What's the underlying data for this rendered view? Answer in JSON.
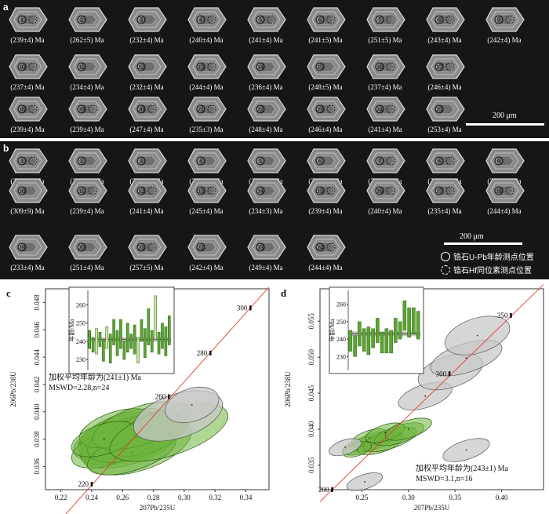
{
  "panel_a": {
    "label": "a",
    "scale_text": "200 μm",
    "grains": [
      {
        "spot": "1",
        "age": "(239±4) Ma",
        "hf": true
      },
      {
        "spot": "2",
        "age": "(262±5) Ma",
        "hf": false
      },
      {
        "spot": "3",
        "age": "(232±4) Ma",
        "hf": false
      },
      {
        "spot": "4",
        "age": "(240±4) Ma",
        "hf": true
      },
      {
        "spot": "5",
        "age": "(241±4) Ma",
        "hf": true
      },
      {
        "spot": "6",
        "age": "(241±5) Ma",
        "hf": true
      },
      {
        "spot": "7",
        "age": "(251±5) Ma",
        "hf": true
      },
      {
        "spot": "8",
        "age": "(243±4) Ma",
        "hf": true
      },
      {
        "spot": "9",
        "age": "(242±4) Ma",
        "hf": true
      },
      {
        "spot": "10",
        "age": "(237±4) Ma",
        "hf": true
      },
      {
        "spot": "11",
        "age": "(234±4) Ma",
        "hf": false
      },
      {
        "spot": "12",
        "age": "(232±4) Ma",
        "hf": false
      },
      {
        "spot": "13",
        "age": "(244±4) Ma",
        "hf": true
      },
      {
        "spot": "14",
        "age": "(236±4) Ma",
        "hf": false
      },
      {
        "spot": "15",
        "age": "(248±5) Ma",
        "hf": false
      },
      {
        "spot": "16",
        "age": "(237±4) Ma",
        "hf": true
      },
      {
        "spot": "17",
        "age": "(246±4) Ma",
        "hf": true
      },
      {
        "spot": "18",
        "age": "(239±4) Ma",
        "hf": true
      },
      {
        "spot": "19",
        "age": "(239±4) Ma",
        "hf": true
      },
      {
        "spot": "20",
        "age": "(247±4) Ma",
        "hf": true
      },
      {
        "spot": "21",
        "age": "(235±3) Ma",
        "hf": true
      },
      {
        "spot": "22",
        "age": "(248±4) Ma",
        "hf": false
      },
      {
        "spot": "23",
        "age": "(246±4) Ma",
        "hf": true
      },
      {
        "spot": "24",
        "age": "(241±4) Ma",
        "hf": true
      },
      {
        "spot": "25",
        "age": "(253±4) Ma",
        "hf": false
      }
    ]
  },
  "panel_b": {
    "label": "b",
    "scale_text": "200 μm",
    "legend": {
      "upb": "锆石U-Pb年龄测点位置",
      "hf": "锆石Hf同位素测点位置"
    },
    "grains": [
      {
        "spot": "1",
        "age": "(238±4) Ma",
        "hf": true
      },
      {
        "spot": "2",
        "age": "(206±3) Ma",
        "hf": false
      },
      {
        "spot": "3",
        "age": "(300±6) Ma",
        "hf": false
      },
      {
        "spot": "4",
        "age": "(232±3) Ma",
        "hf": false
      },
      {
        "spot": "5",
        "age": "(278±5) Ma",
        "hf": false
      },
      {
        "spot": "6",
        "age": "(239±3) Ma",
        "hf": false
      },
      {
        "spot": "7",
        "age": "(256±5) Ma",
        "hf": true
      },
      {
        "spot": "8",
        "age": "(251±5) Ma",
        "hf": true
      },
      {
        "spot": "9",
        "age": "(336±8) Ma",
        "hf": false
      },
      {
        "spot": "10",
        "age": "(309±9) Ma",
        "hf": false
      },
      {
        "spot": "11",
        "age": "(239±4) Ma",
        "hf": true
      },
      {
        "spot": "12",
        "age": "(241±4) Ma",
        "hf": true
      },
      {
        "spot": "13",
        "age": "(245±4) Ma",
        "hf": true
      },
      {
        "spot": "14",
        "age": "(234±3) Ma",
        "hf": false
      },
      {
        "spot": "15",
        "age": "(239±4) Ma",
        "hf": true
      },
      {
        "spot": "16",
        "age": "(240±4) Ma",
        "hf": true
      },
      {
        "spot": "17",
        "age": "(235±4) Ma",
        "hf": true
      },
      {
        "spot": "18",
        "age": "(244±4) Ma",
        "hf": true
      },
      {
        "spot": "19",
        "age": "(233±4) Ma",
        "hf": false
      },
      {
        "spot": "20",
        "age": "(251±4) Ma",
        "hf": false
      },
      {
        "spot": "21",
        "age": "(257±5) Ma",
        "hf": true
      },
      {
        "spot": "22",
        "age": "(242±4) Ma",
        "hf": false
      },
      {
        "spot": "23",
        "age": "(249±4) Ma",
        "hf": false
      },
      {
        "spot": "24",
        "age": "(244±4) Ma",
        "hf": true
      }
    ]
  },
  "chart_data": [
    {
      "type": "scatter",
      "label": "c",
      "xlabel": "207Pb/235U",
      "ylabel": "206Pb/238U",
      "xlim": [
        0.21,
        0.355
      ],
      "ylim": [
        0.0343,
        0.049
      ],
      "xticks": [
        "0.22",
        "0.24",
        "0.26",
        "0.28",
        "0.30",
        "0.32",
        "0.34"
      ],
      "yticks": [
        "0.036",
        "0.038",
        "0.040",
        "0.042",
        "0.044",
        "0.046",
        "0.048"
      ],
      "concordia_marks": [
        {
          "age": "220",
          "x": 0.24,
          "y": 0.0347
        },
        {
          "age": "260",
          "x": 0.29,
          "y": 0.0411
        },
        {
          "age": "280",
          "x": 0.317,
          "y": 0.0443
        },
        {
          "age": "300",
          "x": 0.343,
          "y": 0.0476
        }
      ],
      "annotation": [
        "加权平均年龄为(241±1) Ma",
        "MSWD=2.28,n=24"
      ],
      "inset": {
        "ylabel": "年龄/Ma",
        "yticks": [
          "230",
          "240",
          "250",
          "260"
        ],
        "ylim": [
          224,
          268
        ],
        "mean": 241,
        "bars": [
          [
            236,
            246
          ],
          [
            234,
            242
          ],
          [
            233,
            247
          ],
          [
            237,
            245
          ],
          [
            229,
            241
          ],
          [
            236,
            248
          ],
          [
            228,
            244
          ],
          [
            238,
            252
          ],
          [
            232,
            246
          ],
          [
            236,
            252
          ],
          [
            230,
            240
          ],
          [
            234,
            250
          ],
          [
            236,
            244
          ],
          [
            233,
            249
          ],
          [
            228,
            242
          ],
          [
            240,
            252
          ],
          [
            231,
            247
          ],
          [
            238,
            258
          ],
          [
            234,
            246
          ],
          [
            241,
            265
          ],
          [
            233,
            245
          ],
          [
            236,
            250
          ],
          [
            232,
            248
          ],
          [
            238,
            254
          ]
        ],
        "grey_bars": [
          2,
          5,
          14,
          19
        ]
      },
      "ellipses": [
        {
          "cx": 0.255,
          "cy": 0.038,
          "rx": 0.028,
          "ry": 0.0013,
          "grey": false
        },
        {
          "cx": 0.265,
          "cy": 0.0378,
          "rx": 0.034,
          "ry": 0.0016,
          "grey": false
        },
        {
          "cx": 0.26,
          "cy": 0.0383,
          "rx": 0.03,
          "ry": 0.0014,
          "grey": false
        },
        {
          "cx": 0.27,
          "cy": 0.0375,
          "rx": 0.036,
          "ry": 0.0018,
          "grey": false
        },
        {
          "cx": 0.258,
          "cy": 0.0376,
          "rx": 0.026,
          "ry": 0.0012,
          "grey": false
        },
        {
          "cx": 0.262,
          "cy": 0.0386,
          "rx": 0.031,
          "ry": 0.0013,
          "grey": false
        },
        {
          "cx": 0.25,
          "cy": 0.0373,
          "rx": 0.024,
          "ry": 0.0012,
          "grey": false
        },
        {
          "cx": 0.268,
          "cy": 0.0381,
          "rx": 0.032,
          "ry": 0.0015,
          "grey": false
        },
        {
          "cx": 0.275,
          "cy": 0.0384,
          "rx": 0.028,
          "ry": 0.0014,
          "grey": false
        },
        {
          "cx": 0.266,
          "cy": 0.037,
          "rx": 0.03,
          "ry": 0.0013,
          "grey": false
        },
        {
          "cx": 0.256,
          "cy": 0.0388,
          "rx": 0.025,
          "ry": 0.0012,
          "grey": false
        },
        {
          "cx": 0.272,
          "cy": 0.039,
          "rx": 0.033,
          "ry": 0.0014,
          "grey": false
        },
        {
          "cx": 0.248,
          "cy": 0.038,
          "rx": 0.022,
          "ry": 0.0011,
          "grey": false
        },
        {
          "cx": 0.29,
          "cy": 0.0385,
          "rx": 0.04,
          "ry": 0.0017,
          "grey": false
        },
        {
          "cx": 0.296,
          "cy": 0.0397,
          "rx": 0.03,
          "ry": 0.0016,
          "grey": true
        },
        {
          "cx": 0.305,
          "cy": 0.0405,
          "rx": 0.018,
          "ry": 0.0012,
          "grey": true
        }
      ]
    },
    {
      "type": "scatter",
      "label": "d",
      "xlabel": "207Pb/235U",
      "ylabel": "206Pb/238U",
      "xlim": [
        0.205,
        0.445
      ],
      "ylim": [
        0.0316,
        0.0595
      ],
      "xticks": [
        "0.25",
        "0.30",
        "0.35",
        "0.40"
      ],
      "yticks": [
        "0.035",
        "0.040",
        "0.045",
        "0.050",
        "0.055"
      ],
      "concordia_marks": [
        {
          "age": "200",
          "x": 0.218,
          "y": 0.0316
        },
        {
          "age": "300",
          "x": 0.344,
          "y": 0.0477
        },
        {
          "age": "350",
          "x": 0.41,
          "y": 0.0558
        }
      ],
      "annotation": [
        "加权平均年龄为(243±1) Ma",
        "MSWD=3.1,n=16"
      ],
      "inset": {
        "ylabel": "年龄/Ma",
        "yticks": [
          "230",
          "240",
          "250",
          "260"
        ],
        "ylim": [
          222,
          268
        ],
        "mean": 243,
        "bars": [
          [
            233,
            245
          ],
          [
            230,
            242
          ],
          [
            236,
            250
          ],
          [
            233,
            246
          ],
          [
            231,
            247
          ],
          [
            235,
            246
          ],
          [
            238,
            252
          ],
          [
            232,
            244
          ],
          [
            232,
            246
          ],
          [
            232,
            245
          ],
          [
            238,
            252
          ],
          [
            240,
            250
          ],
          [
            245,
            262
          ],
          [
            241,
            258
          ],
          [
            243,
            258
          ],
          [
            240,
            256
          ]
        ],
        "grey_bars": []
      },
      "ellipses": [
        {
          "cx": 0.25,
          "cy": 0.0377,
          "rx": 0.022,
          "ry": 0.001,
          "grey": false
        },
        {
          "cx": 0.262,
          "cy": 0.0383,
          "rx": 0.024,
          "ry": 0.0011,
          "grey": false
        },
        {
          "cx": 0.27,
          "cy": 0.038,
          "rx": 0.026,
          "ry": 0.0012,
          "grey": false
        },
        {
          "cx": 0.258,
          "cy": 0.0388,
          "rx": 0.02,
          "ry": 0.001,
          "grey": false
        },
        {
          "cx": 0.28,
          "cy": 0.0386,
          "rx": 0.03,
          "ry": 0.0013,
          "grey": false
        },
        {
          "cx": 0.29,
          "cy": 0.0393,
          "rx": 0.028,
          "ry": 0.0012,
          "grey": false
        },
        {
          "cx": 0.275,
          "cy": 0.0395,
          "rx": 0.022,
          "ry": 0.0011,
          "grey": false
        },
        {
          "cx": 0.3,
          "cy": 0.04,
          "rx": 0.026,
          "ry": 0.0012,
          "grey": false
        },
        {
          "cx": 0.245,
          "cy": 0.0372,
          "rx": 0.016,
          "ry": 0.0009,
          "grey": false
        },
        {
          "cx": 0.232,
          "cy": 0.0375,
          "rx": 0.018,
          "ry": 0.001,
          "grey": true
        },
        {
          "cx": 0.253,
          "cy": 0.0327,
          "rx": 0.02,
          "ry": 0.001,
          "grey": true
        },
        {
          "cx": 0.362,
          "cy": 0.0371,
          "rx": 0.026,
          "ry": 0.0013,
          "grey": true
        },
        {
          "cx": 0.318,
          "cy": 0.0446,
          "rx": 0.03,
          "ry": 0.0016,
          "grey": true
        },
        {
          "cx": 0.345,
          "cy": 0.048,
          "rx": 0.036,
          "ry": 0.0022,
          "grey": true
        },
        {
          "cx": 0.362,
          "cy": 0.0499,
          "rx": 0.04,
          "ry": 0.002,
          "grey": true
        },
        {
          "cx": 0.374,
          "cy": 0.053,
          "rx": 0.036,
          "ry": 0.0024,
          "grey": true
        }
      ]
    }
  ]
}
